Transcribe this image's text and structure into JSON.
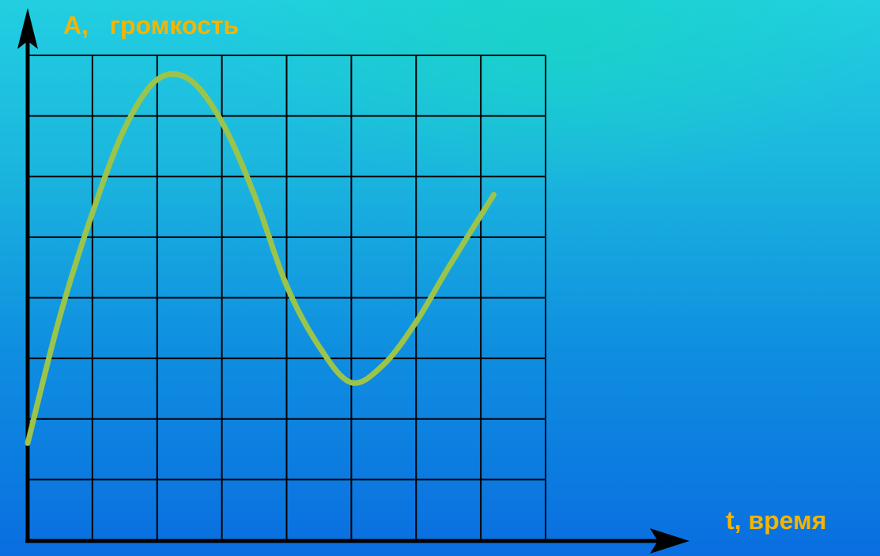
{
  "colors": {
    "label": "#f4b400",
    "curve": "#9bc44a",
    "grid": "#000000",
    "axis": "#000000"
  },
  "labels": {
    "ylabel": "A,   громкость",
    "xlabel": "t, время"
  },
  "chart_data": {
    "type": "line",
    "title": "",
    "xlabel": "t, время",
    "ylabel": "A,   громкость",
    "grid": true,
    "grid_cols": 8,
    "grid_rows": 8,
    "xlim": [
      0,
      8
    ],
    "ylim": [
      0,
      8
    ],
    "series": [
      {
        "x": [
          0,
          0.5,
          1.0,
          1.5,
          2.0,
          2.5,
          3.0,
          3.5,
          4.0,
          4.5,
          5.0,
          5.5,
          6.0,
          6.5,
          7.2
        ],
        "y": [
          1.6,
          3.7,
          5.4,
          6.8,
          7.6,
          7.6,
          6.9,
          5.7,
          4.2,
          3.2,
          2.6,
          2.9,
          3.6,
          4.5,
          5.7
        ]
      }
    ]
  }
}
